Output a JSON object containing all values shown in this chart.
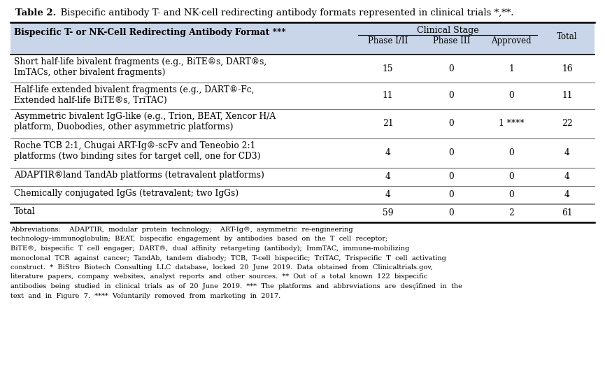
{
  "title_bold": "Table 2.",
  "title_rest": "  Bispecific antibody T- and NK-cell redirecting antibody formats represented in clinical trials *,**.",
  "header_col": "Bispecific T- or NK-Cell Redirecting Antibody Format ***",
  "header_stage": "Clinical Stage",
  "subheaders": [
    "Phase I/II",
    "Phase III",
    "Approved"
  ],
  "rows": [
    {
      "label": "Short half-life bivalent fragments (e.g., BiTE®s, DART®s,\nImTACs, other bivalent fragments)",
      "values": [
        "15",
        "0",
        "1",
        "16"
      ]
    },
    {
      "label": "Half-life extended bivalent fragments (e.g., DART®-Fc,\nExtended half-life BiTE®s, TriTAC)",
      "values": [
        "11",
        "0",
        "0",
        "11"
      ]
    },
    {
      "label": "Asymmetric bivalent IgG-like (e.g., Trion, BEAT, Xencor H/A\nplatform, Duobodies, other asymmetric platforms)",
      "values": [
        "21",
        "0",
        "1 ****",
        "22"
      ]
    },
    {
      "label": "Roche TCB 2:1, Chugai ART-Ig®-scFv and Teneobio 2:1\nplatforms (two binding sites for target cell, one for CD3)",
      "values": [
        "4",
        "0",
        "0",
        "4"
      ]
    },
    {
      "label": "ADAPTIR®land TandAb platforms (tetravalent platforms)",
      "values": [
        "4",
        "0",
        "0",
        "4"
      ]
    },
    {
      "label": "Chemically conjugated IgGs (tetravalent; two IgGs)",
      "values": [
        "4",
        "0",
        "0",
        "4"
      ]
    },
    {
      "label": "Total",
      "values": [
        "59",
        "0",
        "2",
        "61"
      ]
    }
  ],
  "footnote_lines": [
    "Abbreviations:    ADAPTIR,  modular  protein  technology;    ART-Ig®,  asymmetric  re-engineering",
    "technology–immunoglobulin;  BEAT,  bispecific  engagement  by  antibodies  based  on  the  T  cell  receptor;",
    "BiTE®,  bispecific  T  cell  engager;  DART®,  dual  affinity  retargeting  (antibody);  ImmTAC,  immune-mobilizing",
    "monoclonal  TCR  against  cancer;  TandAb,  tandem  diabody;  TCB,  T-cell  bispecific;  TriTAC,  Trispecific  T  cell  activating",
    "construct.  *  BiStro  Biotech  Consulting  LLC  database,  locked  20  June  2019.  Data  obtained  from  Clinicaltrials.gov,",
    "literature  papers,  company  websites,  analyst  reports  and  other  sources.  **  Out  of  a  total  known  122  bispecific",
    "antibodies  being  studied  in  clinical  trials  as  of  20  June  2019.  ***  The  platforms  and  abbreviations  are  desçîfined  in  the",
    "text  and  in  Figure  7.  ****  Voluntarily  removed  from  marketing  in  2017."
  ],
  "header_bg": "#c9d5e8",
  "border_color": "#000000",
  "fig_width": 8.65,
  "fig_height": 5.42
}
